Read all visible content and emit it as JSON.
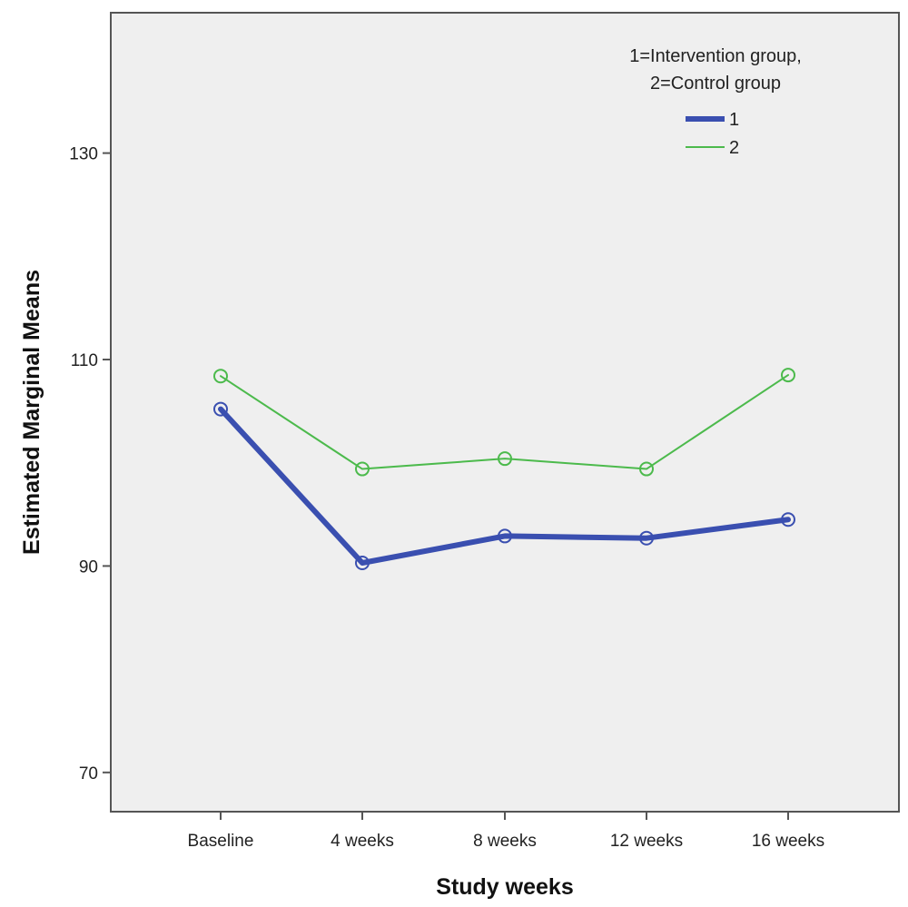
{
  "chart_data": {
    "type": "line",
    "title": "",
    "xlabel": "Study weeks",
    "ylabel": "Estimated Marginal Means",
    "categories": [
      "Baseline",
      "4 weeks",
      "8 weeks",
      "12 weeks",
      "16 weeks"
    ],
    "yticks": [
      70,
      90,
      110,
      130
    ],
    "ylim": [
      66.2,
      143.6
    ],
    "grid": false,
    "legend": {
      "title": "1=Intervention group,\n2=Control group",
      "title_lines": [
        "1=Intervention group,",
        "2=Control group"
      ],
      "placement": "top-right"
    },
    "series": [
      {
        "name": "1",
        "color": "#3a4fb0",
        "values": [
          105.2,
          90.3,
          92.9,
          92.7,
          94.5
        ]
      },
      {
        "name": "2",
        "color": "#4cba4c",
        "values": [
          108.4,
          99.4,
          100.4,
          99.4,
          108.5
        ]
      }
    ]
  }
}
